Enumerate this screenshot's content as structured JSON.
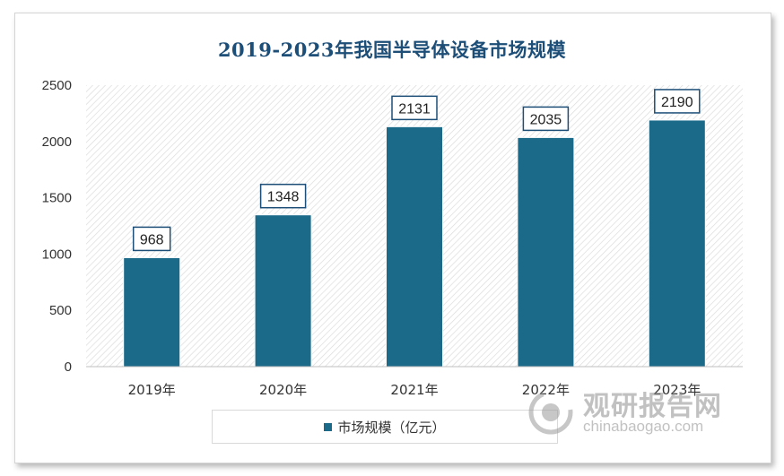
{
  "chart_data": {
    "type": "bar",
    "title": "2019-2023年我国半导体设备市场规模",
    "categories": [
      "2019年",
      "2020年",
      "2021年",
      "2022年",
      "2023年"
    ],
    "series": [
      {
        "name": "市场规模（亿元）",
        "values": [
          968,
          1348,
          2131,
          2035,
          2190
        ]
      }
    ],
    "ylim": [
      0,
      2500
    ],
    "yticks": [
      0,
      500,
      1000,
      1500,
      2000,
      2500
    ],
    "xlabel": "",
    "ylabel": "",
    "legend_position": "bottom",
    "grid": false,
    "bar_color": "#1b6a8a"
  },
  "watermark": {
    "name_cn": "观研报告网",
    "name_en": "chinabaogao.com"
  }
}
